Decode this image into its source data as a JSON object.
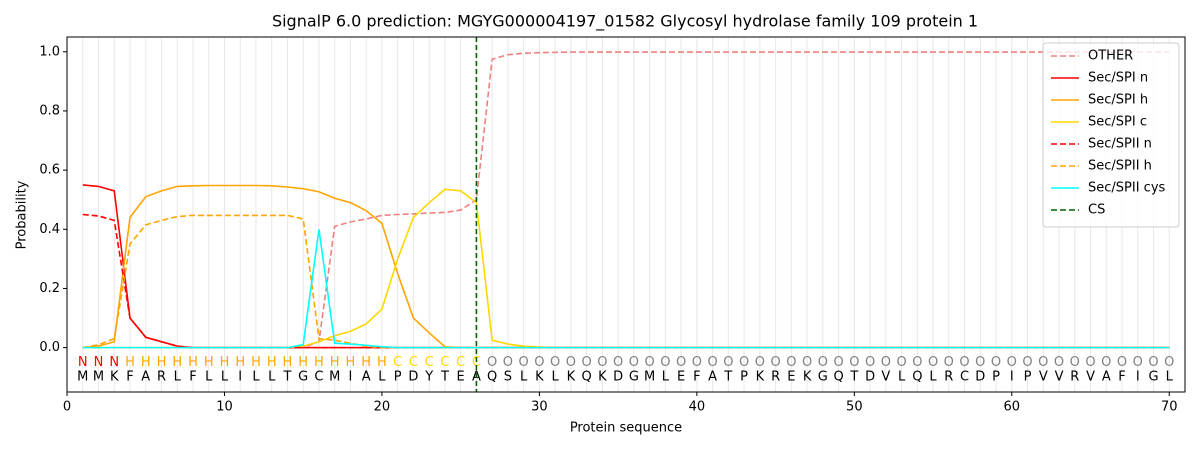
{
  "chart_data": {
    "type": "line",
    "title": "SignalP 6.0 prediction: MGYG000004197_01582 Glycosyl hydrolase family 109 protein 1",
    "xlabel": "Protein sequence",
    "ylabel": "Probability",
    "xlim": [
      0,
      71
    ],
    "ylim": [
      -0.15,
      1.05
    ],
    "xticks": [
      0,
      10,
      20,
      30,
      40,
      50,
      60,
      70
    ],
    "yticks": [
      {
        "value": 0,
        "label": "0.0"
      },
      {
        "value": 0.2,
        "label": "0.2"
      },
      {
        "value": 0.4,
        "label": "0.4"
      },
      {
        "value": 0.6,
        "label": "0.6"
      },
      {
        "value": 0.8,
        "label": "0.8"
      },
      {
        "value": 1.0,
        "label": "1.0"
      }
    ],
    "grid": true,
    "legend": "upper right",
    "x": [
      1,
      2,
      3,
      4,
      5,
      6,
      7,
      8,
      9,
      10,
      11,
      12,
      13,
      14,
      15,
      16,
      17,
      18,
      19,
      20,
      21,
      22,
      23,
      24,
      25,
      26,
      27,
      28,
      29,
      30,
      31,
      32,
      33,
      34,
      35,
      36,
      37,
      38,
      39,
      40,
      41,
      42,
      43,
      44,
      45,
      46,
      47,
      48,
      49,
      50,
      51,
      52,
      53,
      54,
      55,
      56,
      57,
      58,
      59,
      60,
      61,
      62,
      63,
      64,
      65,
      66,
      67,
      68,
      69,
      70
    ],
    "residues": [
      "M",
      "M",
      "K",
      "F",
      "A",
      "R",
      "L",
      "F",
      "L",
      "L",
      "I",
      "L",
      "L",
      "T",
      "G",
      "C",
      "M",
      "I",
      "A",
      "L",
      "P",
      "D",
      "Y",
      "T",
      "E",
      "A",
      "Q",
      "S",
      "L",
      "K",
      "L",
      "K",
      "Q",
      "K",
      "D",
      "G",
      "M",
      "L",
      "E",
      "F",
      "A",
      "T",
      "P",
      "K",
      "R",
      "E",
      "K",
      "G",
      "Q",
      "T",
      "D",
      "V",
      "L",
      "Q",
      "L",
      "R",
      "C",
      "D",
      "P",
      "I",
      "P",
      "V",
      "V",
      "R",
      "V",
      "A",
      "F",
      "I",
      "G",
      "L"
    ],
    "labels": [
      "N",
      "N",
      "N",
      "H",
      "H",
      "H",
      "H",
      "H",
      "H",
      "H",
      "H",
      "H",
      "H",
      "H",
      "H",
      "H",
      "H",
      "H",
      "H",
      "H",
      "C",
      "C",
      "C",
      "C",
      "C",
      "C",
      "O",
      "O",
      "O",
      "O",
      "O",
      "O",
      "O",
      "O",
      "O",
      "O",
      "O",
      "O",
      "O",
      "O",
      "O",
      "O",
      "O",
      "O",
      "O",
      "O",
      "O",
      "O",
      "O",
      "O",
      "O",
      "O",
      "O",
      "O",
      "O",
      "O",
      "O",
      "O",
      "O",
      "O",
      "O",
      "O",
      "O",
      "O",
      "O",
      "O",
      "O",
      "O",
      "O",
      "O"
    ],
    "label_colors": {
      "N": "#ff0000",
      "H": "#ffa500",
      "C": "#ffd700",
      "O": "#808080"
    },
    "series": [
      {
        "name": "OTHER",
        "color": "#f08080",
        "dash": true,
        "values": [
          0,
          0,
          0,
          0,
          0,
          0,
          0,
          0,
          0,
          0,
          0,
          0,
          0,
          0,
          0,
          0.02,
          0.41,
          0.425,
          0.435,
          0.447,
          0.45,
          0.452,
          0.455,
          0.457,
          0.465,
          0.5,
          0.975,
          0.99,
          0.995,
          0.997,
          0.998,
          0.999,
          0.999,
          0.999,
          0.999,
          0.999,
          0.999,
          0.999,
          0.999,
          0.999,
          0.999,
          0.999,
          0.999,
          0.999,
          0.999,
          0.999,
          0.999,
          0.999,
          0.999,
          0.999,
          0.999,
          0.999,
          0.999,
          0.999,
          0.999,
          0.999,
          0.999,
          0.999,
          0.999,
          0.999,
          0.999,
          0.999,
          0.999,
          0.999,
          0.999,
          0.999,
          0.999,
          0.999,
          0.999,
          0.999
        ]
      },
      {
        "name": "Sec/SPI n",
        "color": "#ff0000",
        "dash": false,
        "values": [
          0.55,
          0.545,
          0.53,
          0.1,
          0.035,
          0.02,
          0.005,
          0,
          0,
          0,
          0,
          0,
          0,
          0,
          0,
          0,
          0,
          0,
          0,
          0,
          0,
          0,
          0,
          0,
          0,
          0,
          0,
          0,
          0,
          0,
          0,
          0,
          0,
          0,
          0,
          0,
          0,
          0,
          0,
          0,
          0,
          0,
          0,
          0,
          0,
          0,
          0,
          0,
          0,
          0,
          0,
          0,
          0,
          0,
          0,
          0,
          0,
          0,
          0,
          0,
          0,
          0,
          0,
          0,
          0,
          0,
          0,
          0,
          0,
          0
        ]
      },
      {
        "name": "Sec/SPI h",
        "color": "#ffa500",
        "dash": false,
        "values": [
          0,
          0.005,
          0.02,
          0.44,
          0.51,
          0.53,
          0.545,
          0.547,
          0.548,
          0.548,
          0.548,
          0.548,
          0.547,
          0.543,
          0.537,
          0.527,
          0.505,
          0.49,
          0.463,
          0.42,
          0.25,
          0.1,
          0.05,
          0.003,
          0,
          0,
          0,
          0,
          0,
          0,
          0,
          0,
          0,
          0,
          0,
          0,
          0,
          0,
          0,
          0,
          0,
          0,
          0,
          0,
          0,
          0,
          0,
          0,
          0,
          0,
          0,
          0,
          0,
          0,
          0,
          0,
          0,
          0,
          0,
          0,
          0,
          0,
          0,
          0,
          0,
          0,
          0,
          0,
          0,
          0
        ]
      },
      {
        "name": "Sec/SPI c",
        "color": "#ffd700",
        "dash": false,
        "values": [
          0,
          0,
          0,
          0,
          0,
          0,
          0,
          0,
          0,
          0,
          0,
          0,
          0,
          0,
          0.005,
          0.02,
          0.04,
          0.055,
          0.08,
          0.13,
          0.3,
          0.44,
          0.49,
          0.535,
          0.53,
          0.49,
          0.025,
          0.012,
          0.005,
          0.002,
          0,
          0,
          0,
          0,
          0,
          0,
          0,
          0,
          0,
          0,
          0,
          0,
          0,
          0,
          0,
          0,
          0,
          0,
          0,
          0,
          0,
          0,
          0,
          0,
          0,
          0,
          0,
          0,
          0,
          0,
          0,
          0,
          0,
          0,
          0,
          0,
          0,
          0,
          0,
          0
        ]
      },
      {
        "name": "Sec/SPII n",
        "color": "#ff0000",
        "dash": true,
        "values": [
          0.45,
          0.445,
          0.43,
          0.1,
          0.035,
          0.02,
          0.005,
          0,
          0,
          0,
          0,
          0,
          0,
          0,
          0,
          0,
          0,
          0,
          0,
          0,
          0,
          0,
          0,
          0,
          0,
          0,
          0,
          0,
          0,
          0,
          0,
          0,
          0,
          0,
          0,
          0,
          0,
          0,
          0,
          0,
          0,
          0,
          0,
          0,
          0,
          0,
          0,
          0,
          0,
          0,
          0,
          0,
          0,
          0,
          0,
          0,
          0,
          0,
          0,
          0,
          0,
          0,
          0,
          0,
          0,
          0,
          0,
          0,
          0,
          0
        ]
      },
      {
        "name": "Sec/SPII h",
        "color": "#ffa500",
        "dash": true,
        "values": [
          0,
          0.01,
          0.03,
          0.35,
          0.415,
          0.43,
          0.443,
          0.447,
          0.447,
          0.447,
          0.447,
          0.447,
          0.447,
          0.447,
          0.435,
          0.03,
          0.025,
          0.015,
          0.005,
          0,
          0,
          0,
          0,
          0,
          0,
          0,
          0,
          0,
          0,
          0,
          0,
          0,
          0,
          0,
          0,
          0,
          0,
          0,
          0,
          0,
          0,
          0,
          0,
          0,
          0,
          0,
          0,
          0,
          0,
          0,
          0,
          0,
          0,
          0,
          0,
          0,
          0,
          0,
          0,
          0,
          0,
          0,
          0,
          0,
          0,
          0,
          0,
          0,
          0,
          0
        ]
      },
      {
        "name": "Sec/SPII cys",
        "color": "#00ffff",
        "dash": false,
        "values": [
          0,
          0,
          0,
          0,
          0,
          0,
          0,
          0,
          0,
          0,
          0,
          0,
          0,
          0,
          0.01,
          0.4,
          0.015,
          0.012,
          0.008,
          0.003,
          0,
          0,
          0,
          0,
          0,
          0,
          0,
          0,
          0,
          0,
          0,
          0,
          0,
          0,
          0,
          0,
          0,
          0,
          0,
          0,
          0,
          0,
          0,
          0,
          0,
          0,
          0,
          0,
          0,
          0,
          0,
          0,
          0,
          0,
          0,
          0,
          0,
          0,
          0,
          0,
          0,
          0,
          0,
          0,
          0,
          0,
          0,
          0,
          0,
          0
        ]
      }
    ],
    "cs": {
      "name": "CS",
      "color": "#006400",
      "x": 26
    }
  }
}
